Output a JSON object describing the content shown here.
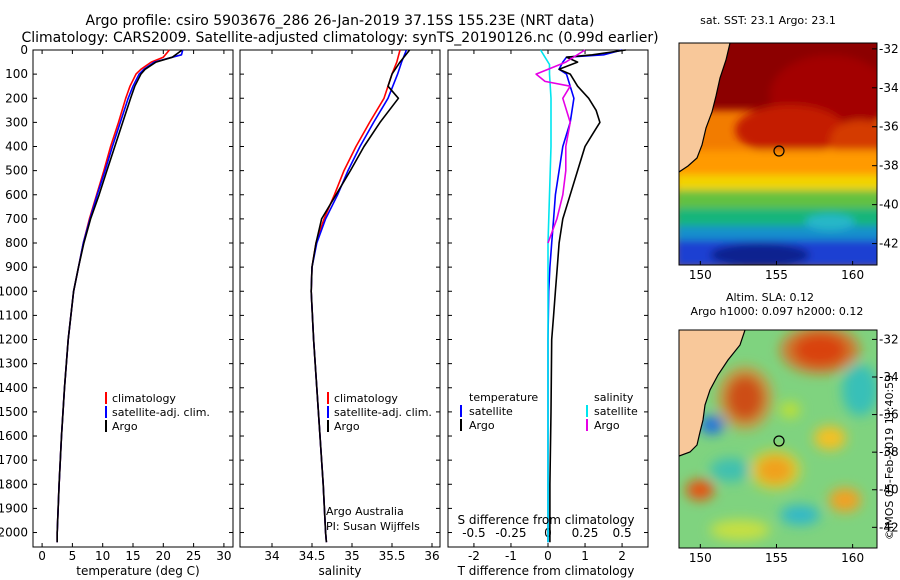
{
  "header": {
    "title_line1": "Argo profile: csiro 5903676_286 26-Jan-2019 37.15S 155.23E (NRT data)",
    "title_line2": "Climatology: CARS2009. Satellite-adjusted climatology: synTS_20190126.nc (0.99d earlier)"
  },
  "colors": {
    "climatology": "#ff0000",
    "satellite": "#0000ff",
    "argo": "#000000",
    "s_satellite": "#00e5ee",
    "s_argo": "#e600e6",
    "land": "#f8c89a"
  },
  "chart_data": [
    {
      "type": "line",
      "id": "temperature",
      "xlabel": "temperature (deg C)",
      "ylabel": "depth",
      "xlim": [
        -1.5,
        31.5
      ],
      "ylim": [
        2060,
        0
      ],
      "xticks": [
        "0",
        "5",
        "10",
        "15",
        "20",
        "25",
        "30"
      ],
      "yticks": [
        "0",
        "100",
        "200",
        "300",
        "400",
        "500",
        "600",
        "700",
        "800",
        "900",
        "1000",
        "1100",
        "1200",
        "1300",
        "1400",
        "1500",
        "1600",
        "1700",
        "1800",
        "1900",
        "2000"
      ],
      "legend": [
        "climatology",
        "satellite-adj. clim.",
        "Argo"
      ],
      "series": [
        {
          "name": "climatology",
          "depth": [
            0,
            30,
            50,
            80,
            100,
            150,
            200,
            300,
            400,
            500,
            600,
            700,
            800,
            900,
            1000,
            1200,
            1400,
            1600,
            1800,
            2000,
            2040
          ],
          "values": [
            21,
            20,
            18,
            16.3,
            15.5,
            14.5,
            13.8,
            12.6,
            11.3,
            10.2,
            9.0,
            7.8,
            6.8,
            6.0,
            5.2,
            4.3,
            3.7,
            3.2,
            2.8,
            2.5,
            2.5
          ]
        },
        {
          "name": "satellite-adj. clim.",
          "depth": [
            0,
            20,
            30,
            50,
            80,
            100,
            150,
            200,
            300,
            400,
            500,
            600,
            700,
            800,
            900,
            1000,
            1200,
            1400,
            1600,
            1800,
            2000,
            2040
          ],
          "values": [
            23.2,
            23,
            21.5,
            18.5,
            16.8,
            16,
            15,
            14.2,
            12.9,
            11.6,
            10.4,
            9.1,
            7.9,
            6.8,
            6.0,
            5.2,
            4.3,
            3.7,
            3.2,
            2.8,
            2.5,
            2.5
          ]
        },
        {
          "name": "Argo",
          "depth": [
            0,
            30,
            50,
            80,
            100,
            150,
            200,
            300,
            400,
            500,
            600,
            700,
            800,
            900,
            1000,
            1200,
            1400,
            1600,
            1800,
            2000,
            2040
          ],
          "values": [
            23.1,
            21.5,
            18.8,
            17,
            16.3,
            15.3,
            14.6,
            13.3,
            12.0,
            10.7,
            9.4,
            8.0,
            6.9,
            6.0,
            5.2,
            4.3,
            3.7,
            3.2,
            2.8,
            2.5,
            2.5
          ]
        }
      ]
    },
    {
      "type": "line",
      "id": "salinity",
      "xlabel": "salinity",
      "ylabel": "depth",
      "xlim": [
        33.6,
        36.1
      ],
      "ylim": [
        2060,
        0
      ],
      "xticks": [
        "34",
        "34.5",
        "35",
        "35.5",
        "36"
      ],
      "legend": [
        "climatology",
        "satellite-adj. clim.",
        "Argo"
      ],
      "series": [
        {
          "name": "climatology",
          "depth": [
            0,
            50,
            100,
            200,
            300,
            400,
            500,
            600,
            700,
            800,
            900,
            1000,
            1200,
            1400,
            1600,
            1800,
            2000,
            2040
          ],
          "values": [
            35.6,
            35.56,
            35.5,
            35.4,
            35.22,
            35.05,
            34.9,
            34.78,
            34.65,
            34.55,
            34.5,
            34.49,
            34.52,
            34.56,
            34.6,
            34.64,
            34.67,
            34.68
          ]
        },
        {
          "name": "satellite-adj. clim.",
          "depth": [
            0,
            50,
            100,
            200,
            300,
            400,
            500,
            600,
            700,
            800,
            900,
            1000,
            1200,
            1400,
            1600,
            1800,
            2000,
            2040
          ],
          "values": [
            35.68,
            35.62,
            35.57,
            35.45,
            35.27,
            35.1,
            34.95,
            34.82,
            34.67,
            34.56,
            34.5,
            34.49,
            34.52,
            34.56,
            34.6,
            34.64,
            34.67,
            34.68
          ]
        },
        {
          "name": "Argo",
          "depth": [
            0,
            50,
            100,
            150,
            200,
            300,
            400,
            500,
            600,
            700,
            800,
            900,
            1000,
            1200,
            1400,
            1600,
            1800,
            2000,
            2040
          ],
          "values": [
            35.72,
            35.6,
            35.5,
            35.45,
            35.58,
            35.35,
            35.15,
            34.98,
            34.8,
            34.62,
            34.55,
            34.5,
            34.49,
            34.52,
            34.56,
            34.6,
            34.64,
            34.67,
            34.68
          ]
        }
      ],
      "annotation_line1": "Argo Australia",
      "annotation_line2": "PI: Susan Wijffels"
    },
    {
      "type": "line",
      "id": "difference",
      "xlabel": "T difference from climatology",
      "xlabel_top": "S difference from climatology",
      "ylabel": "depth",
      "xlim": [
        -2.7,
        2.7
      ],
      "ylim": [
        2060,
        0
      ],
      "xticks": [
        "-2",
        "-1",
        "0",
        "1",
        "2"
      ],
      "xticks_top": [
        "-0.5",
        "-0.25",
        "0",
        "0.25",
        "0.5"
      ],
      "legend_left_title": "temperature",
      "legend_right_title": "salinity",
      "legend_left": [
        "satellite",
        "Argo"
      ],
      "legend_right": [
        "satellite",
        "Argo"
      ],
      "series": [
        {
          "name": "T satellite",
          "depth": [
            0,
            20,
            30,
            50,
            80,
            100,
            200,
            300,
            400,
            500,
            600,
            700,
            800,
            900,
            1000,
            1200,
            1500,
            1800,
            2040
          ],
          "values": [
            2,
            1.5,
            0.5,
            0.4,
            0.3,
            0.5,
            0.7,
            0.6,
            0.4,
            0.3,
            0.2,
            0.15,
            0.1,
            0.05,
            0.02,
            0.0,
            0.0,
            0.0,
            0.0
          ]
        },
        {
          "name": "T Argo",
          "depth": [
            0,
            20,
            30,
            50,
            80,
            100,
            150,
            200,
            250,
            300,
            350,
            400,
            500,
            600,
            700,
            800,
            900,
            1000,
            1100,
            1200,
            1500,
            1800,
            2040
          ],
          "values": [
            2.1,
            1.2,
            0.5,
            0.8,
            0.3,
            0.6,
            0.8,
            1.1,
            1.3,
            1.4,
            1.2,
            1.0,
            0.8,
            0.6,
            0.4,
            0.3,
            0.25,
            0.2,
            0.15,
            0.1,
            0.08,
            0.05,
            0.05
          ]
        },
        {
          "name": "S satellite",
          "depth": [
            0,
            30,
            60,
            100,
            200,
            400,
            600,
            800,
            1000,
            1200,
            1500,
            2040
          ],
          "values": [
            -0.05,
            -0.02,
            0.01,
            0.01,
            0.02,
            0.02,
            0.01,
            0.0,
            0.0,
            0.0,
            0.0,
            0.0
          ]
        },
        {
          "name": "S Argo",
          "depth": [
            0,
            50,
            100,
            130,
            150,
            200,
            300,
            400,
            500,
            600,
            700,
            800
          ],
          "values": [
            0.25,
            0.12,
            -0.08,
            -0.02,
            0.15,
            0.1,
            0.15,
            0.12,
            0.12,
            0.1,
            0.06,
            0.0
          ]
        }
      ]
    }
  ],
  "maps": {
    "sst_title": "sat. SST: 23.1  Argo: 23.1",
    "sla_title_line1": "Altim. SLA: 0.12",
    "sla_title_line2": "Argo h1000: 0.097 h2000: 0.12",
    "lat_ticks": [
      "-32",
      "-34",
      "-36",
      "-38",
      "-40",
      "-42"
    ],
    "lon_ticks": [
      "150",
      "155",
      "160"
    ]
  },
  "credit": "©IMOS 05-Feb-2019 11:40:59"
}
